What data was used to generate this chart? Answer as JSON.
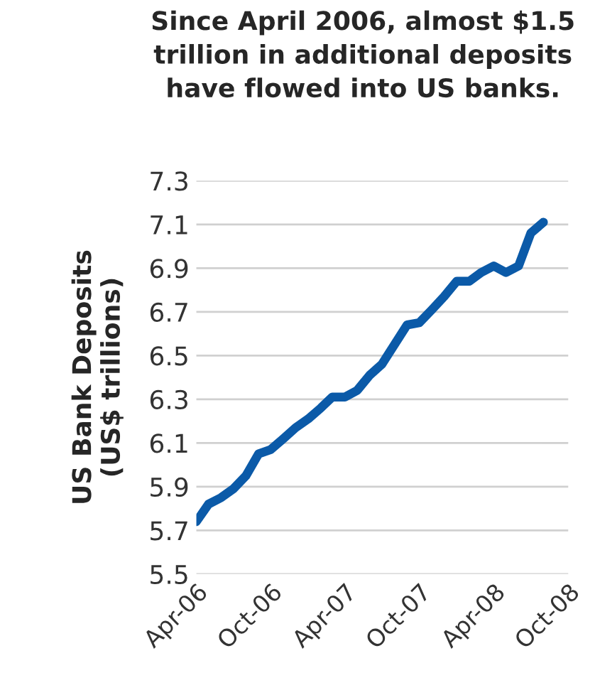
{
  "chart_data": {
    "type": "line",
    "title": "Since April 2006, almost $1.5\ntrillion in additional deposits\nhave flowed into US banks.",
    "ylabel": "US Bank Deposits\n(US$ trillions)",
    "x": [
      "2006-04",
      "2006-05",
      "2006-06",
      "2006-07",
      "2006-08",
      "2006-09",
      "2006-10",
      "2006-11",
      "2006-12",
      "2007-01",
      "2007-02",
      "2007-03",
      "2007-04",
      "2007-05",
      "2007-06",
      "2007-07",
      "2007-08",
      "2007-09",
      "2007-10",
      "2007-11",
      "2007-12",
      "2008-01",
      "2008-02",
      "2008-03",
      "2008-04",
      "2008-05",
      "2008-06",
      "2008-07",
      "2008-08"
    ],
    "series": [
      {
        "color": "#0b5aa8",
        "values": [
          5.74,
          5.82,
          5.85,
          5.89,
          5.95,
          6.05,
          6.07,
          6.12,
          6.17,
          6.21,
          6.26,
          6.31,
          6.31,
          6.34,
          6.41,
          6.46,
          6.55,
          6.64,
          6.65,
          6.71,
          6.77,
          6.84,
          6.84,
          6.88,
          6.91,
          6.88,
          6.91,
          7.06,
          7.11
        ]
      }
    ],
    "ylim": [
      5.5,
      7.3
    ],
    "yticks": [
      5.5,
      5.7,
      5.9,
      6.1,
      6.3,
      6.5,
      6.7,
      6.9,
      7.1,
      7.3
    ],
    "xlim": [
      "2006-04",
      "2008-10"
    ],
    "xticks": [
      {
        "value": "2006-04",
        "label": "Apr-06"
      },
      {
        "value": "2006-10",
        "label": "Oct-06"
      },
      {
        "value": "2007-04",
        "label": "Apr-07"
      },
      {
        "value": "2007-10",
        "label": "Oct-07"
      },
      {
        "value": "2008-04",
        "label": "Apr-08"
      },
      {
        "value": "2008-10",
        "label": "Oct-08"
      }
    ],
    "grid": "y",
    "legend": false,
    "marker": "none",
    "line_style": "solid"
  }
}
